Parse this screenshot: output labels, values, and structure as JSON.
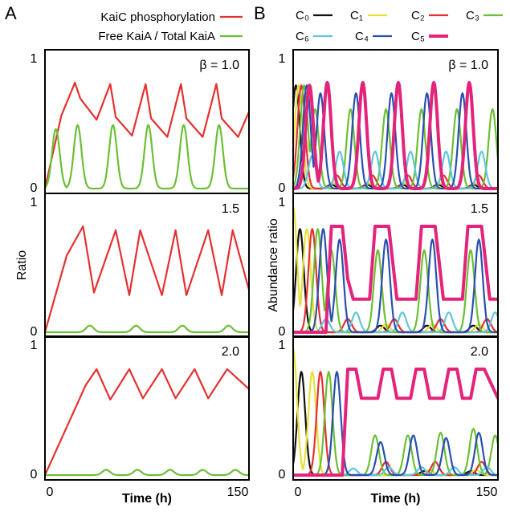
{
  "figure": {
    "panel_a": "A",
    "panel_b": "B"
  },
  "chart_data": [
    {
      "panel": "A",
      "type": "line",
      "xlabel": "Time (h)",
      "ylabel": "Ratio",
      "xlim": [
        0,
        150
      ],
      "ylim": [
        0,
        1
      ],
      "x_ticks": [
        "0",
        "150"
      ],
      "y_ticks": [
        "0",
        "1"
      ],
      "legend": [
        {
          "name": "KaiC phosphorylation",
          "color": "#e53030"
        },
        {
          "name": "Free KaiA / Total KaiA",
          "color": "#6cbf35"
        }
      ],
      "subplots": [
        {
          "beta_label": "β = 1.0",
          "series": [
            {
              "name": "KaiC phosphorylation",
              "color": "#e53030",
              "x": [
                0,
                12,
                22,
                26,
                38,
                48,
                52,
                64,
                74,
                78,
                90,
                100,
                104,
                116,
                126,
                130,
                142,
                150
              ],
              "y": [
                0,
                0.55,
                0.8,
                0.68,
                0.52,
                0.79,
                0.54,
                0.4,
                0.79,
                0.53,
                0.39,
                0.79,
                0.53,
                0.39,
                0.79,
                0.53,
                0.39,
                0.58
              ]
            },
            {
              "name": "Free KaiA / Total KaiA",
              "color": "#6cbf35",
              "peaks_x": [
                8,
                24,
                50,
                76,
                102,
                128
              ],
              "peaks_y": [
                0.45,
                0.48,
                0.48,
                0.48,
                0.48,
                0.48
              ],
              "y_baseline": 0
            }
          ]
        },
        {
          "beta_label": "1.5",
          "series": [
            {
              "name": "KaiC phosphorylation",
              "color": "#e53030",
              "x": [
                0,
                16,
                28,
                36,
                52,
                62,
                70,
                86,
                96,
                104,
                120,
                130,
                138,
                150
              ],
              "y": [
                0,
                0.58,
                0.8,
                0.3,
                0.77,
                0.28,
                0.77,
                0.28,
                0.77,
                0.28,
                0.77,
                0.28,
                0.77,
                0.32
              ]
            },
            {
              "name": "Free KaiA / Total KaiA",
              "color": "#6cbf35",
              "peaks_x": [
                33,
                67,
                101,
                135
              ],
              "peaks_y": [
                0.05,
                0.05,
                0.05,
                0.05
              ],
              "y_baseline": 0
            }
          ]
        },
        {
          "beta_label": "2.0",
          "series": [
            {
              "name": "KaiC phosphorylation",
              "color": "#e53030",
              "x": [
                0,
                30,
                38,
                48,
                62,
                72,
                86,
                96,
                110,
                120,
                134,
                150
              ],
              "y": [
                0,
                0.68,
                0.8,
                0.57,
                0.8,
                0.58,
                0.8,
                0.58,
                0.8,
                0.58,
                0.8,
                0.65
              ]
            },
            {
              "name": "Free KaiA / Total KaiA",
              "color": "#6cbf35",
              "peaks_x": [
                45,
                68,
                92,
                116,
                140
              ],
              "peaks_y": [
                0.04,
                0.04,
                0.04,
                0.04,
                0.04
              ],
              "y_baseline": 0
            }
          ]
        }
      ]
    },
    {
      "panel": "B",
      "type": "line",
      "xlabel": "Time (h)",
      "ylabel": "Abundance ratio",
      "xlim": [
        0,
        150
      ],
      "ylim": [
        0,
        1
      ],
      "x_ticks": [
        "0",
        "150"
      ],
      "y_ticks": [
        "0",
        "1"
      ],
      "legend": [
        {
          "name": "C₀",
          "color": "#111111"
        },
        {
          "name": "C₁",
          "color": "#e8e03a"
        },
        {
          "name": "C₂",
          "color": "#e53030"
        },
        {
          "name": "C₃",
          "color": "#6cbf35"
        },
        {
          "name": "C₆",
          "color": "#5fc6dd"
        },
        {
          "name": "C₄",
          "color": "#2a4fb0"
        },
        {
          "name": "C₅",
          "color": "#e4237a"
        }
      ],
      "subplots": [
        {
          "beta_label": "β = 1.0",
          "series": [
            {
              "name": "C₀",
              "color": "#111111",
              "peaks_x": [
                2,
                28,
                54,
                80,
                106,
                132
              ],
              "peaks_y": [
                0.78,
                0.03,
                0.03,
                0.03,
                0.03,
                0.03
              ]
            },
            {
              "name": "C₁",
              "color": "#e8e03a",
              "peaks_x": [
                4,
                30,
                56,
                82,
                108,
                134
              ],
              "peaks_y": [
                0.78,
                0.04,
                0.04,
                0.04,
                0.04,
                0.04
              ]
            },
            {
              "name": "C₂",
              "color": "#e53030",
              "peaks_x": [
                6,
                32,
                58,
                84,
                110,
                136
              ],
              "peaks_y": [
                0.78,
                0.1,
                0.1,
                0.1,
                0.1,
                0.1
              ]
            },
            {
              "name": "C₃",
              "color": "#6cbf35",
              "peaks_x": [
                8,
                16,
                42,
                68,
                94,
                120,
                146
              ],
              "peaks_y": [
                0.78,
                0.6,
                0.6,
                0.6,
                0.6,
                0.6,
                0.6
              ]
            },
            {
              "name": "C₆",
              "color": "#5fc6dd",
              "peaks_x": [
                14,
                34,
                60,
                86,
                112,
                138
              ],
              "peaks_y": [
                0.25,
                0.28,
                0.28,
                0.28,
                0.28,
                0.28
              ]
            },
            {
              "name": "C₄",
              "color": "#2a4fb0",
              "peaks_x": [
                10,
                20,
                46,
                72,
                98,
                124
              ],
              "peaks_y": [
                0.78,
                0.72,
                0.72,
                0.72,
                0.72,
                0.72
              ]
            },
            {
              "name": "C₅",
              "color": "#e4237a",
              "peaks_x": [
                12,
                25,
                51,
                77,
                103,
                129
              ],
              "peaks_y": [
                0.78,
                0.8,
                0.8,
                0.8,
                0.8,
                0.8
              ]
            }
          ]
        },
        {
          "beta_label": "1.5",
          "series": [
            {
              "name": "C₀",
              "color": "#111111",
              "peaks_x": [
                5,
                64,
                98,
                132
              ],
              "peaks_y": [
                0.78,
                0.05,
                0.05,
                0.05
              ]
            },
            {
              "name": "C₁",
              "color": "#e8e03a",
              "peaks_x": [
                0,
                10,
                68,
                102,
                136
              ],
              "peaks_y": [
                0.95,
                0.78,
                0.06,
                0.06,
                0.06
              ]
            },
            {
              "name": "C₂",
              "color": "#e53030",
              "peaks_x": [
                14,
                40,
                74,
                108,
                142
              ],
              "peaks_y": [
                0.78,
                0.1,
                0.1,
                0.1,
                0.1
              ]
            },
            {
              "name": "C₃",
              "color": "#6cbf35",
              "peaks_x": [
                18,
                28,
                62,
                96,
                130
              ],
              "peaks_y": [
                0.78,
                0.62,
                0.62,
                0.62,
                0.62
              ]
            },
            {
              "name": "C₆",
              "color": "#5fc6dd",
              "peaks_x": [
                24,
                46,
                80,
                114,
                148
              ],
              "peaks_y": [
                0.1,
                0.15,
                0.15,
                0.15,
                0.15
              ]
            },
            {
              "name": "C₄",
              "color": "#2a4fb0",
              "peaks_x": [
                22,
                34,
                68,
                102,
                136
              ],
              "peaks_y": [
                0.78,
                0.7,
                0.7,
                0.7,
                0.7
              ]
            },
            {
              "name": "C₅",
              "color": "#e4237a",
              "x": [
                0,
                24,
                28,
                36,
                40,
                44,
                50,
                56,
                60,
                70,
                76,
                84,
                90,
                94,
                104,
                110,
                118,
                124,
                128,
                138,
                144,
                150
              ],
              "y": [
                0,
                0,
                0.8,
                0.8,
                0.4,
                0.25,
                0.25,
                0.25,
                0.8,
                0.8,
                0.25,
                0.25,
                0.25,
                0.8,
                0.8,
                0.25,
                0.25,
                0.25,
                0.8,
                0.8,
                0.25,
                0.25
              ]
            }
          ]
        },
        {
          "beta_label": "2.0",
          "series": [
            {
              "name": "C₀",
              "color": "#111111",
              "peaks_x": [
                6,
                96,
                130
              ],
              "peaks_y": [
                0.78,
                0.03,
                0.03
              ]
            },
            {
              "name": "C₁",
              "color": "#e8e03a",
              "peaks_x": [
                0,
                14,
                100,
                134
              ],
              "peaks_y": [
                0.95,
                0.78,
                0.04,
                0.04
              ]
            },
            {
              "name": "C₂",
              "color": "#e53030",
              "peaks_x": [
                20,
                68,
                104,
                138
              ],
              "peaks_y": [
                0.78,
                0.1,
                0.1,
                0.1
              ]
            },
            {
              "name": "C₃",
              "color": "#6cbf35",
              "peaks_x": [
                26,
                60,
                84,
                108,
                132,
                148
              ],
              "peaks_y": [
                0.78,
                0.3,
                0.3,
                0.32,
                0.35,
                0.3
              ]
            },
            {
              "name": "C₆",
              "color": "#5fc6dd",
              "peaks_x": [
                44,
                70,
                94,
                118,
                142
              ],
              "peaks_y": [
                0.05,
                0.06,
                0.06,
                0.06,
                0.06
              ]
            },
            {
              "name": "C₄",
              "color": "#2a4fb0",
              "peaks_x": [
                32,
                64,
                88,
                112,
                136
              ],
              "peaks_y": [
                0.78,
                0.25,
                0.3,
                0.28,
                0.32
              ]
            },
            {
              "name": "C₅",
              "color": "#e4237a",
              "x": [
                0,
                36,
                40,
                46,
                50,
                62,
                66,
                72,
                76,
                86,
                90,
                96,
                100,
                110,
                114,
                120,
                124,
                130,
                134,
                140,
                150
              ],
              "y": [
                0,
                0,
                0.8,
                0.8,
                0.58,
                0.58,
                0.8,
                0.8,
                0.58,
                0.58,
                0.8,
                0.8,
                0.58,
                0.58,
                0.8,
                0.8,
                0.58,
                0.58,
                0.8,
                0.8,
                0.58
              ]
            }
          ]
        }
      ]
    }
  ]
}
